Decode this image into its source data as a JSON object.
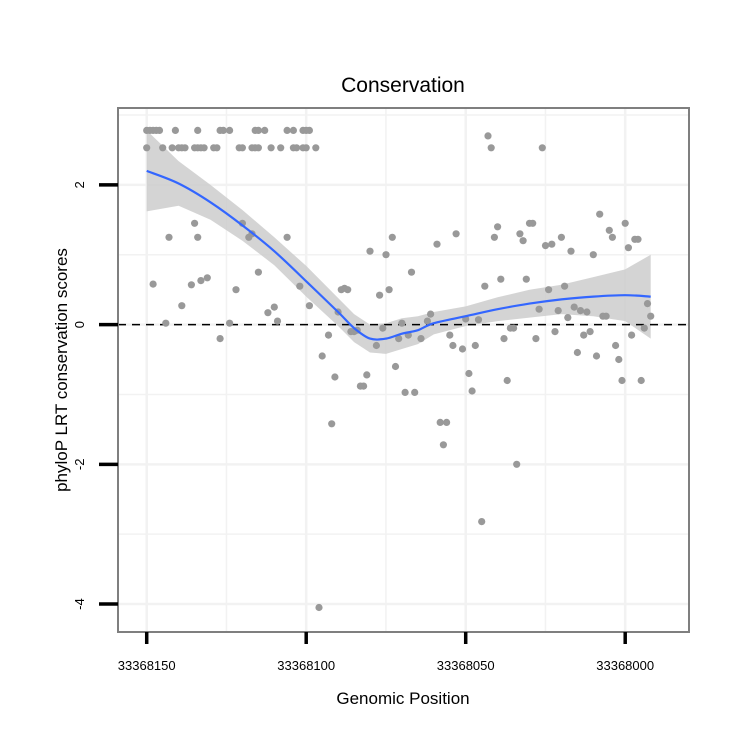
{
  "chart_data": {
    "type": "scatter",
    "title": "Conservation",
    "xlabel": "Genomic Position",
    "ylabel": "phyloP LRT conservation scores",
    "xlim": [
      33368159,
      33367980
    ],
    "ylim": [
      -4.4,
      3.1
    ],
    "x_reversed": true,
    "xticks": [
      33368150,
      33368100,
      33368050,
      33368000
    ],
    "yticks": [
      -4,
      -2,
      0,
      2
    ],
    "xtick_labels": [
      "33368150",
      "33368100",
      "33368050",
      "33368000"
    ],
    "ytick_labels": [
      "-4",
      "-2",
      "0",
      "2"
    ],
    "grid": true,
    "reference_line": {
      "y": 0,
      "style": "dashed"
    },
    "colors": {
      "points": "#999999",
      "trend": "#3366FF",
      "band": "#CCCCCC",
      "frame": "#7F7F7F",
      "grid": "#F2F2F2"
    },
    "points": [
      [
        33368150,
        2.78
      ],
      [
        33368149,
        2.78
      ],
      [
        33368148,
        2.78
      ],
      [
        33368147,
        2.78
      ],
      [
        33368146,
        2.78
      ],
      [
        33368141,
        2.78
      ],
      [
        33368134,
        2.78
      ],
      [
        33368127,
        2.78
      ],
      [
        33368126,
        2.78
      ],
      [
        33368124,
        2.78
      ],
      [
        33368116,
        2.78
      ],
      [
        33368115,
        2.78
      ],
      [
        33368113,
        2.78
      ],
      [
        33368106,
        2.78
      ],
      [
        33368104,
        2.78
      ],
      [
        33368101,
        2.78
      ],
      [
        33368100,
        2.78
      ],
      [
        33368099,
        2.78
      ],
      [
        33368150,
        2.53
      ],
      [
        33368145,
        2.53
      ],
      [
        33368142,
        2.53
      ],
      [
        33368140,
        2.53
      ],
      [
        33368139,
        2.53
      ],
      [
        33368138,
        2.53
      ],
      [
        33368135,
        2.53
      ],
      [
        33368134,
        2.53
      ],
      [
        33368133,
        2.53
      ],
      [
        33368132,
        2.53
      ],
      [
        33368129,
        2.53
      ],
      [
        33368128,
        2.53
      ],
      [
        33368121,
        2.53
      ],
      [
        33368120,
        2.53
      ],
      [
        33368117,
        2.53
      ],
      [
        33368116,
        2.53
      ],
      [
        33368115,
        2.53
      ],
      [
        33368111,
        2.53
      ],
      [
        33368108,
        2.53
      ],
      [
        33368104,
        2.53
      ],
      [
        33368103,
        2.53
      ],
      [
        33368101,
        2.53
      ],
      [
        33368100,
        2.53
      ],
      [
        33368097,
        2.53
      ],
      [
        33368148,
        0.58
      ],
      [
        33368144,
        0.02
      ],
      [
        33368143,
        1.25
      ],
      [
        33368139,
        0.27
      ],
      [
        33368136,
        0.57
      ],
      [
        33368135,
        1.45
      ],
      [
        33368134,
        1.25
      ],
      [
        33368133,
        0.63
      ],
      [
        33368131,
        0.67
      ],
      [
        33368127,
        -0.2
      ],
      [
        33368124,
        0.02
      ],
      [
        33368122,
        0.5
      ],
      [
        33368120,
        1.45
      ],
      [
        33368118,
        1.25
      ],
      [
        33368117,
        1.3
      ],
      [
        33368115,
        0.75
      ],
      [
        33368112,
        0.17
      ],
      [
        33368110,
        0.25
      ],
      [
        33368109,
        0.05
      ],
      [
        33368106,
        1.25
      ],
      [
        33368102,
        0.55
      ],
      [
        33368099,
        0.27
      ],
      [
        33368096,
        -4.05
      ],
      [
        33368095,
        -0.45
      ],
      [
        33368093,
        -0.15
      ],
      [
        33368092,
        -1.42
      ],
      [
        33368091,
        -0.75
      ],
      [
        33368090,
        0.18
      ],
      [
        33368089,
        0.5
      ],
      [
        33368088,
        0.52
      ],
      [
        33368087,
        0.5
      ],
      [
        33368086,
        -0.1
      ],
      [
        33368085,
        -0.1
      ],
      [
        33368084,
        -0.08
      ],
      [
        33368083,
        -0.88
      ],
      [
        33368082,
        -0.88
      ],
      [
        33368081,
        -0.72
      ],
      [
        33368080,
        1.05
      ],
      [
        33368078,
        -0.3
      ],
      [
        33368077,
        0.42
      ],
      [
        33368076,
        -0.05
      ],
      [
        33368075,
        1.0
      ],
      [
        33368074,
        0.5
      ],
      [
        33368073,
        1.25
      ],
      [
        33368072,
        -0.6
      ],
      [
        33368071,
        -0.2
      ],
      [
        33368070,
        0.02
      ],
      [
        33368069,
        -0.97
      ],
      [
        33368068,
        -0.15
      ],
      [
        33368067,
        0.75
      ],
      [
        33368066,
        -0.97
      ],
      [
        33368064,
        -0.2
      ],
      [
        33368062,
        0.05
      ],
      [
        33368061,
        0.15
      ],
      [
        33368059,
        1.15
      ],
      [
        33368058,
        -1.4
      ],
      [
        33368057,
        -1.72
      ],
      [
        33368056,
        -1.4
      ],
      [
        33368055,
        -0.15
      ],
      [
        33368054,
        -0.3
      ],
      [
        33368053,
        1.3
      ],
      [
        33368051,
        -0.35
      ],
      [
        33368050,
        0.08
      ],
      [
        33368049,
        -0.7
      ],
      [
        33368048,
        -0.95
      ],
      [
        33368047,
        -0.3
      ],
      [
        33368046,
        0.07
      ],
      [
        33368045,
        -2.82
      ],
      [
        33368044,
        0.55
      ],
      [
        33368043,
        2.7
      ],
      [
        33368042,
        2.53
      ],
      [
        33368041,
        1.25
      ],
      [
        33368040,
        1.4
      ],
      [
        33368039,
        0.65
      ],
      [
        33368038,
        -0.2
      ],
      [
        33368037,
        -0.8
      ],
      [
        33368036,
        -0.05
      ],
      [
        33368035,
        -0.05
      ],
      [
        33368034,
        -2.0
      ],
      [
        33368033,
        1.3
      ],
      [
        33368032,
        1.2
      ],
      [
        33368031,
        0.65
      ],
      [
        33368030,
        1.45
      ],
      [
        33368029,
        1.45
      ],
      [
        33368028,
        -0.2
      ],
      [
        33368027,
        0.22
      ],
      [
        33368026,
        2.53
      ],
      [
        33368025,
        1.13
      ],
      [
        33368024,
        0.5
      ],
      [
        33368023,
        1.15
      ],
      [
        33368022,
        -0.1
      ],
      [
        33368021,
        0.2
      ],
      [
        33368020,
        1.25
      ],
      [
        33368019,
        0.55
      ],
      [
        33368018,
        0.1
      ],
      [
        33368017,
        1.05
      ],
      [
        33368016,
        0.25
      ],
      [
        33368015,
        -0.4
      ],
      [
        33368014,
        0.2
      ],
      [
        33368013,
        -0.15
      ],
      [
        33368012,
        0.18
      ],
      [
        33368011,
        -0.1
      ],
      [
        33368010,
        1.0
      ],
      [
        33368009,
        -0.45
      ],
      [
        33368008,
        1.58
      ],
      [
        33368007,
        0.12
      ],
      [
        33368006,
        0.12
      ],
      [
        33368005,
        1.35
      ],
      [
        33368004,
        1.25
      ],
      [
        33368003,
        -0.3
      ],
      [
        33368002,
        -0.5
      ],
      [
        33368001,
        -0.8
      ],
      [
        33368000,
        1.45
      ],
      [
        33367999,
        1.1
      ],
      [
        33367998,
        -0.15
      ],
      [
        33367997,
        1.22
      ],
      [
        33367996,
        1.22
      ],
      [
        33367995,
        -0.8
      ],
      [
        33367994,
        -0.05
      ],
      [
        33367993,
        0.3
      ],
      [
        33367992,
        0.12
      ]
    ],
    "trend": {
      "x": [
        33368150,
        33368140,
        33368130,
        33368120,
        33368110,
        33368100,
        33368090,
        33368085,
        33368080,
        33368075,
        33368070,
        33368065,
        33368060,
        33368050,
        33368040,
        33368030,
        33368020,
        33368010,
        33368000,
        33367992
      ],
      "y": [
        2.2,
        2.02,
        1.75,
        1.42,
        1.05,
        0.62,
        0.18,
        -0.05,
        -0.2,
        -0.2,
        -0.13,
        -0.08,
        0.02,
        0.12,
        0.22,
        0.3,
        0.36,
        0.4,
        0.42,
        0.4
      ],
      "lower": [
        1.62,
        1.7,
        1.5,
        1.2,
        0.85,
        0.4,
        -0.02,
        -0.25,
        -0.4,
        -0.42,
        -0.35,
        -0.28,
        -0.14,
        -0.02,
        0.05,
        0.1,
        0.15,
        0.12,
        0.05,
        -0.2
      ],
      "upper": [
        2.78,
        2.34,
        2.0,
        1.64,
        1.25,
        0.84,
        0.38,
        0.15,
        0.0,
        0.02,
        0.09,
        0.12,
        0.18,
        0.26,
        0.39,
        0.5,
        0.57,
        0.68,
        0.79,
        1.0
      ]
    }
  }
}
